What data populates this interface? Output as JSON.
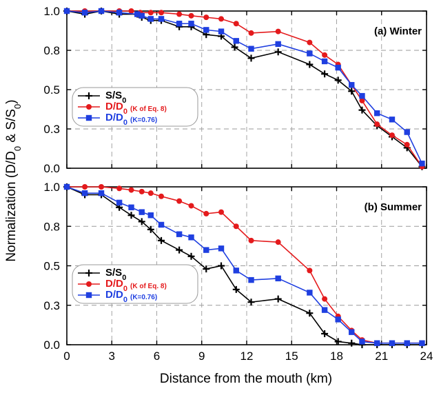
{
  "colors": {
    "S": "#000000",
    "D_eq8": "#e41a1c",
    "D_076": "#1f3fe0"
  },
  "xlabel": "Distance from the mouth (km)",
  "ylabel": {
    "prefix": "Normalization (D/D",
    "sub1": "0",
    "mid": " & S/S",
    "sub2": "0",
    "suffix": ")"
  },
  "legend_entries": [
    {
      "key": "S",
      "main": "S/S",
      "sub": "0",
      "extra": "",
      "color": "#000000",
      "marker": "plus"
    },
    {
      "key": "D_eq8",
      "main": "D/D",
      "sub": "0",
      "extra": "(K of Eq. 8)",
      "color": "#e41a1c",
      "marker": "circle"
    },
    {
      "key": "D_076",
      "main": "D/D",
      "sub": "0",
      "extra": "(K=0.76)",
      "color": "#1f3fe0",
      "marker": "square"
    }
  ],
  "chart_data": [
    {
      "type": "line",
      "title": "(a)  Winter",
      "xlim": [
        0,
        24
      ],
      "ylim": [
        0,
        1
      ],
      "xticks": [
        0,
        3,
        6,
        9,
        12,
        15,
        18,
        21,
        24
      ],
      "yticks": [
        0,
        0.25,
        0.5,
        0.75,
        1.0
      ],
      "ytick_labels": [
        "0.0",
        "0.3",
        "0.5",
        "0.8",
        "1.0"
      ],
      "grid": "dashed",
      "legend_position": "middle-left",
      "series": [
        {
          "name": "S/S0",
          "key": "S",
          "x": [
            0,
            1.2,
            2.3,
            3.5,
            4.7,
            5.0,
            5.6,
            6.3,
            7.5,
            8.3,
            9.3,
            10.3,
            11.2,
            12.3,
            14.1,
            16.2,
            17.2,
            18.1,
            19.0,
            19.7,
            20.7,
            21.7,
            22.7,
            23.7
          ],
          "y": [
            1.0,
            0.98,
            1.0,
            0.98,
            0.98,
            0.96,
            0.94,
            0.94,
            0.9,
            0.9,
            0.85,
            0.84,
            0.77,
            0.7,
            0.74,
            0.66,
            0.6,
            0.56,
            0.49,
            0.37,
            0.27,
            0.2,
            0.13,
            0.01
          ]
        },
        {
          "name": "D/D0 (K of Eq. 8)",
          "key": "D_eq8",
          "x": [
            0,
            1.2,
            2.3,
            3.5,
            4.3,
            4.9,
            5.6,
            6.3,
            7.5,
            8.3,
            9.3,
            10.3,
            11.3,
            12.3,
            14.1,
            16.2,
            17.2,
            18.1,
            19.0,
            19.7,
            20.7,
            21.7,
            22.7,
            23.7
          ],
          "y": [
            1.0,
            1.0,
            1.0,
            1.0,
            1.0,
            0.99,
            0.99,
            0.99,
            0.98,
            0.97,
            0.96,
            0.95,
            0.92,
            0.86,
            0.87,
            0.8,
            0.72,
            0.66,
            0.53,
            0.43,
            0.28,
            0.21,
            0.15,
            0.01
          ]
        },
        {
          "name": "D/D0 (K=0.76)",
          "key": "D_076",
          "x": [
            0,
            1.2,
            2.3,
            3.5,
            4.7,
            5.0,
            5.6,
            6.3,
            7.5,
            8.3,
            9.3,
            10.3,
            11.3,
            12.3,
            14.1,
            16.2,
            17.2,
            18.1,
            19.0,
            19.7,
            20.7,
            21.7,
            22.7,
            23.7
          ],
          "y": [
            1.0,
            0.99,
            1.0,
            0.99,
            0.98,
            0.97,
            0.95,
            0.95,
            0.92,
            0.92,
            0.88,
            0.87,
            0.81,
            0.76,
            0.79,
            0.73,
            0.68,
            0.64,
            0.53,
            0.46,
            0.35,
            0.31,
            0.23,
            0.03
          ]
        }
      ]
    },
    {
      "type": "line",
      "title": "(b)  Summer",
      "xlim": [
        0,
        24
      ],
      "ylim": [
        0,
        1
      ],
      "xticks": [
        0,
        3,
        6,
        9,
        12,
        15,
        18,
        21,
        24
      ],
      "xtick_labels": [
        "0",
        "3",
        "6",
        "9",
        "12",
        "15",
        "18",
        "21",
        "24"
      ],
      "yticks": [
        0,
        0.25,
        0.5,
        0.75,
        1.0
      ],
      "ytick_labels": [
        "0.0",
        "0.3",
        "0.5",
        "0.8",
        "1.0"
      ],
      "grid": "dashed",
      "legend_position": "bottom-left",
      "series": [
        {
          "name": "S/S0",
          "key": "S",
          "x": [
            0,
            1.2,
            2.3,
            3.5,
            4.3,
            5.0,
            5.6,
            6.3,
            7.5,
            8.3,
            9.3,
            10.3,
            11.3,
            12.3,
            14.1,
            16.2,
            17.2,
            18.1,
            19.0,
            19.7,
            20.7,
            21.7,
            22.7,
            23.7
          ],
          "y": [
            1.0,
            0.95,
            0.95,
            0.87,
            0.82,
            0.78,
            0.73,
            0.66,
            0.6,
            0.56,
            0.48,
            0.5,
            0.35,
            0.27,
            0.29,
            0.2,
            0.07,
            0.02,
            0.01,
            0.0,
            0.0,
            0.0,
            0.0,
            0.0
          ]
        },
        {
          "name": "D/D0 (K of Eq. 8)",
          "key": "D_eq8",
          "x": [
            0,
            1.2,
            2.3,
            3.5,
            4.3,
            5.0,
            5.6,
            6.3,
            7.5,
            8.3,
            9.3,
            10.3,
            11.3,
            12.3,
            14.1,
            16.2,
            17.2,
            18.1,
            19.0,
            19.7,
            20.7,
            21.7,
            22.7,
            23.7
          ],
          "y": [
            1.0,
            1.0,
            1.0,
            0.99,
            0.98,
            0.97,
            0.96,
            0.94,
            0.91,
            0.88,
            0.83,
            0.84,
            0.75,
            0.66,
            0.65,
            0.47,
            0.29,
            0.18,
            0.09,
            0.03,
            0.01,
            0.01,
            0.01,
            0.01
          ]
        },
        {
          "name": "D/D0 (K=0.76)",
          "key": "D_076",
          "x": [
            0,
            1.2,
            2.3,
            3.5,
            4.3,
            5.0,
            5.6,
            6.3,
            7.5,
            8.3,
            9.3,
            10.3,
            11.3,
            12.3,
            14.1,
            16.2,
            17.2,
            18.1,
            19.0,
            19.7,
            20.7,
            21.7,
            22.7,
            23.7
          ],
          "y": [
            1.0,
            0.96,
            0.96,
            0.9,
            0.87,
            0.84,
            0.82,
            0.76,
            0.7,
            0.68,
            0.6,
            0.61,
            0.47,
            0.41,
            0.42,
            0.33,
            0.22,
            0.16,
            0.08,
            0.02,
            0.01,
            0.01,
            0.01,
            0.01
          ]
        }
      ]
    }
  ]
}
